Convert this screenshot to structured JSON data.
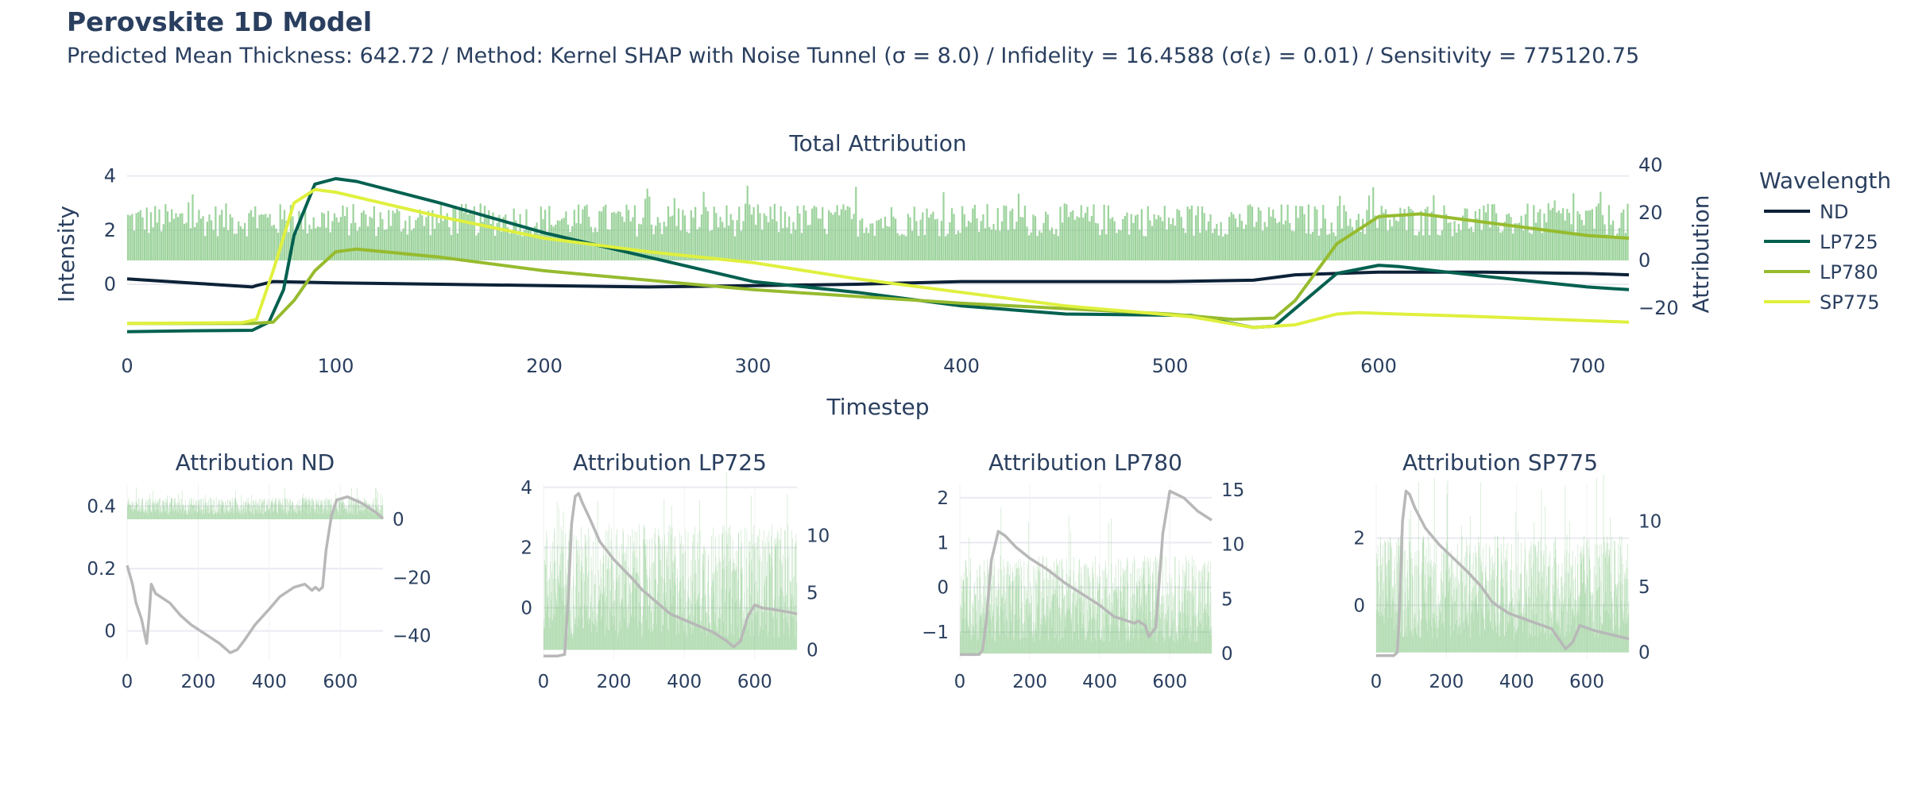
{
  "header": {
    "title": "Perovskite 1D Model",
    "subtitle": "Predicted Mean Thickness: 642.72 / Method: Kernel SHAP with Noise Tunnel (σ = 8.0) / Infidelity = 16.4588 (σ(ε) = 0.01) / Sensitivity = 775120.75"
  },
  "legend": {
    "title": "Wavelength",
    "placement": "right"
  },
  "colors": {
    "ND": "#0d2238",
    "LP725": "#00604f",
    "LP780": "#96bb2e",
    "SP775": "#dff03e",
    "bars": "#7cc47c",
    "grey_line": "#b8b8b8",
    "grid": "#eaeaf2"
  },
  "chart_data": [
    {
      "type": "bar+line",
      "title": "Total Attribution",
      "xlabel": "Timestep",
      "ylabel": "Intensity",
      "y2label": "Attribution",
      "xlim": [
        0,
        720
      ],
      "ylim": [
        -2.2,
        4.4
      ],
      "y2lim": [
        -35,
        40
      ],
      "xticks": [
        "0",
        "100",
        "200",
        "300",
        "400",
        "500",
        "600",
        "700"
      ],
      "yticks": [
        "0",
        "2",
        "4"
      ],
      "y2ticks": [
        "−20",
        "0",
        "20",
        "40"
      ],
      "bars": {
        "name": "Attribution",
        "mean": 17,
        "spread": 7,
        "count": 720
      },
      "series": [
        {
          "name": "ND",
          "x": [
            0,
            20,
            40,
            60,
            62,
            70,
            100,
            150,
            200,
            250,
            300,
            350,
            400,
            450,
            500,
            540,
            560,
            600,
            650,
            700,
            720
          ],
          "y": [
            0.2,
            0.1,
            0.0,
            -0.1,
            -0.05,
            0.1,
            0.05,
            0.0,
            -0.05,
            -0.1,
            -0.05,
            0.0,
            0.1,
            0.1,
            0.1,
            0.15,
            0.35,
            0.45,
            0.45,
            0.4,
            0.35
          ]
        },
        {
          "name": "LP725",
          "x": [
            0,
            30,
            60,
            68,
            75,
            80,
            90,
            100,
            110,
            150,
            200,
            250,
            300,
            350,
            400,
            450,
            510,
            520,
            540,
            550,
            560,
            580,
            600,
            610,
            650,
            700,
            720
          ],
          "y": [
            -1.75,
            -1.72,
            -1.7,
            -1.4,
            -0.2,
            1.8,
            3.7,
            3.9,
            3.8,
            3.0,
            1.9,
            1.0,
            0.1,
            -0.3,
            -0.8,
            -1.1,
            -1.15,
            -1.3,
            -1.6,
            -1.55,
            -0.9,
            0.4,
            0.7,
            0.65,
            0.3,
            -0.1,
            -0.2
          ]
        },
        {
          "name": "LP780",
          "x": [
            0,
            60,
            70,
            80,
            90,
            100,
            110,
            150,
            200,
            300,
            400,
            500,
            530,
            550,
            560,
            580,
            600,
            620,
            650,
            700,
            720
          ],
          "y": [
            -1.45,
            -1.45,
            -1.4,
            -0.6,
            0.5,
            1.2,
            1.3,
            1.0,
            0.5,
            -0.2,
            -0.7,
            -1.1,
            -1.3,
            -1.25,
            -0.6,
            1.5,
            2.5,
            2.6,
            2.3,
            1.8,
            1.7
          ]
        },
        {
          "name": "SP775",
          "x": [
            0,
            55,
            62,
            70,
            80,
            90,
            100,
            150,
            200,
            250,
            300,
            350,
            400,
            450,
            510,
            540,
            560,
            580,
            590,
            650,
            720
          ],
          "y": [
            -1.45,
            -1.42,
            -1.3,
            0.5,
            3.0,
            3.5,
            3.4,
            2.5,
            1.7,
            1.2,
            0.8,
            0.2,
            -0.3,
            -0.8,
            -1.2,
            -1.6,
            -1.5,
            -1.1,
            -1.05,
            -1.2,
            -1.4
          ]
        }
      ]
    },
    {
      "type": "bar+line",
      "title": "Attribution ND",
      "xlim": [
        0,
        720
      ],
      "ylim": [
        -0.09,
        0.47
      ],
      "y2lim": [
        -48,
        12
      ],
      "xticks": [
        "0",
        "200",
        "400",
        "600"
      ],
      "yticks": [
        "0",
        "0.2",
        "0.4"
      ],
      "y2ticks": [
        "−40",
        "−20",
        "0"
      ],
      "bars": {
        "mean": 4.5,
        "spread": 3,
        "count": 720
      },
      "line": {
        "x": [
          0,
          15,
          25,
          40,
          55,
          62,
          68,
          80,
          120,
          150,
          180,
          220,
          260,
          290,
          310,
          330,
          360,
          400,
          430,
          470,
          500,
          520,
          530,
          540,
          550,
          560,
          575,
          590,
          620,
          660,
          700,
          720
        ],
        "y": [
          0.21,
          0.15,
          0.09,
          0.04,
          -0.04,
          0.05,
          0.15,
          0.12,
          0.09,
          0.05,
          0.02,
          -0.01,
          -0.04,
          -0.07,
          -0.06,
          -0.03,
          0.02,
          0.07,
          0.11,
          0.14,
          0.15,
          0.13,
          0.14,
          0.13,
          0.14,
          0.26,
          0.37,
          0.42,
          0.43,
          0.41,
          0.38,
          0.36
        ]
      }
    },
    {
      "type": "bar+line",
      "title": "Attribution LP725",
      "xlim": [
        0,
        720
      ],
      "ylim": [
        -1.7,
        4.1
      ],
      "y2lim": [
        -0.8,
        14.5
      ],
      "xticks": [
        "0",
        "200",
        "400",
        "600"
      ],
      "yticks": [
        "0",
        "2",
        "4"
      ],
      "y2ticks": [
        "0",
        "5",
        "10"
      ],
      "bars": {
        "mean": 6,
        "spread": 5,
        "count": 720
      },
      "line": {
        "x": [
          0,
          40,
          60,
          70,
          80,
          90,
          100,
          110,
          130,
          160,
          200,
          250,
          280,
          320,
          360,
          420,
          480,
          520,
          540,
          560,
          580,
          600,
          620,
          650,
          700,
          720
        ],
        "y": [
          -1.6,
          -1.6,
          -1.55,
          0.2,
          2.8,
          3.7,
          3.8,
          3.5,
          3.0,
          2.2,
          1.6,
          1.0,
          0.6,
          0.2,
          -0.2,
          -0.5,
          -0.8,
          -1.1,
          -1.3,
          -1.1,
          -0.3,
          0.1,
          0.0,
          -0.05,
          -0.15,
          -0.2
        ]
      }
    },
    {
      "type": "bar+line",
      "title": "Attribution LP780",
      "xlim": [
        0,
        720
      ],
      "ylim": [
        -1.6,
        2.3
      ],
      "y2lim": [
        -0.5,
        15.5
      ],
      "xticks": [
        "0",
        "200",
        "400",
        "600"
      ],
      "yticks": [
        "−1",
        "0",
        "1",
        "2"
      ],
      "y2ticks": [
        "0",
        "5",
        "10",
        "15"
      ],
      "bars": {
        "mean": 5,
        "spread": 4,
        "count": 720
      },
      "line": {
        "x": [
          0,
          55,
          65,
          75,
          90,
          110,
          130,
          160,
          200,
          250,
          300,
          350,
          400,
          440,
          500,
          510,
          530,
          540,
          560,
          580,
          600,
          640,
          680,
          700,
          720
        ],
        "y": [
          -1.5,
          -1.5,
          -1.4,
          -0.8,
          0.6,
          1.25,
          1.15,
          0.9,
          0.65,
          0.4,
          0.1,
          -0.15,
          -0.4,
          -0.65,
          -0.8,
          -0.75,
          -0.85,
          -1.1,
          -0.9,
          1.2,
          2.15,
          2.0,
          1.7,
          1.6,
          1.5
        ]
      }
    },
    {
      "type": "bar+line",
      "title": "Attribution SP775",
      "xlim": [
        0,
        720
      ],
      "ylim": [
        -1.6,
        3.6
      ],
      "y2lim": [
        -0.5,
        12.8
      ],
      "xticks": [
        "0",
        "200",
        "400",
        "600"
      ],
      "yticks": [
        "0",
        "2"
      ],
      "y2ticks": [
        "0",
        "5",
        "10"
      ],
      "bars": {
        "mean": 5,
        "spread": 4,
        "count": 720
      },
      "line": {
        "x": [
          0,
          50,
          60,
          65,
          75,
          85,
          95,
          110,
          140,
          180,
          220,
          260,
          300,
          330,
          350,
          380,
          420,
          460,
          500,
          520,
          540,
          560,
          580,
          620,
          660,
          700,
          720
        ],
        "y": [
          -1.5,
          -1.5,
          -1.4,
          -0.5,
          2.5,
          3.4,
          3.3,
          2.9,
          2.3,
          1.8,
          1.4,
          1.0,
          0.55,
          0.1,
          -0.05,
          -0.25,
          -0.4,
          -0.55,
          -0.7,
          -1.0,
          -1.3,
          -1.1,
          -0.6,
          -0.75,
          -0.85,
          -0.95,
          -1.0
        ]
      }
    }
  ]
}
